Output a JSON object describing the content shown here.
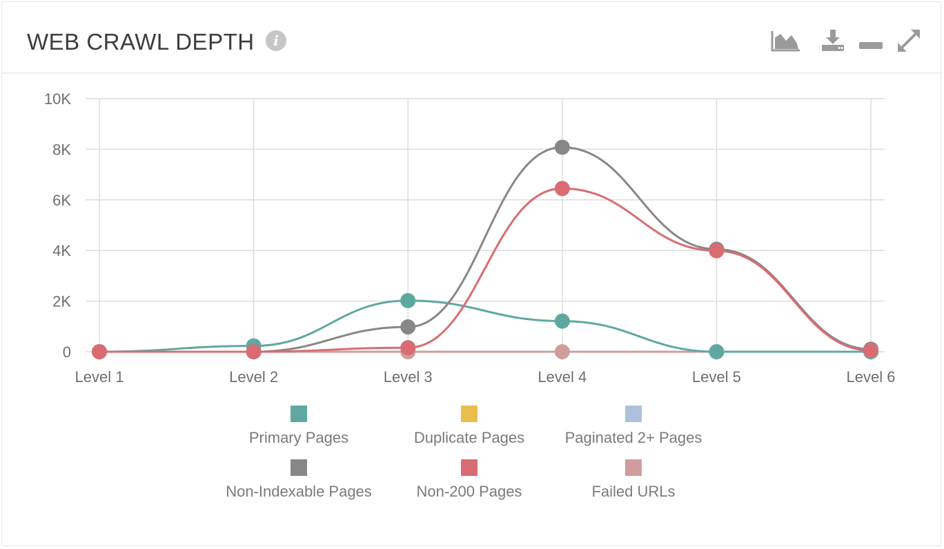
{
  "header": {
    "title": "WEB CRAWL DEPTH",
    "info_icon": "info-icon",
    "tools": [
      {
        "name": "area-chart-icon"
      },
      {
        "name": "download-icon"
      },
      {
        "name": "minimize-icon"
      },
      {
        "name": "expand-icon"
      }
    ]
  },
  "chart_data": {
    "type": "line",
    "smooth": true,
    "categories": [
      "Level 1",
      "Level 2",
      "Level 3",
      "Level 4",
      "Level 5",
      "Level 6"
    ],
    "ylim": [
      0,
      10000
    ],
    "yticks": [
      0,
      2000,
      4000,
      6000,
      8000,
      10000
    ],
    "ytick_labels": [
      "0",
      "2K",
      "4K",
      "6K",
      "8K",
      "10K"
    ],
    "grid": true,
    "legend_position": "bottom",
    "series": [
      {
        "name": "Primary Pages",
        "color": "#5fa8a0",
        "values": [
          0,
          230,
          2020,
          1210,
          0,
          0
        ],
        "drawn": true
      },
      {
        "name": "Duplicate Pages",
        "color": "#ebbd4d",
        "values": [
          0,
          0,
          0,
          0,
          0,
          0
        ],
        "drawn": false
      },
      {
        "name": "Paginated 2+ Pages",
        "color": "#aec0dd",
        "values": [
          0,
          0,
          0,
          0,
          0,
          0
        ],
        "drawn": false
      },
      {
        "name": "Non-Indexable Pages",
        "color": "#878787",
        "values": [
          0,
          0,
          980,
          8080,
          4050,
          100
        ],
        "drawn": true
      },
      {
        "name": "Non-200 Pages",
        "color": "#d96c72",
        "values": [
          0,
          0,
          160,
          6450,
          3990,
          50
        ],
        "drawn": true
      },
      {
        "name": "Failed URLs",
        "color": "#cf9d9d",
        "values": [
          0,
          0,
          0,
          0,
          0,
          0
        ],
        "drawn": true
      }
    ]
  }
}
